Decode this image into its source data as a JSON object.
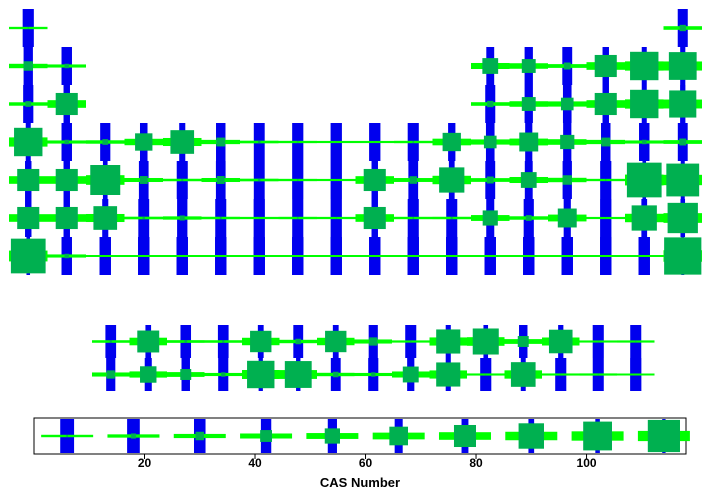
{
  "colors": {
    "blue": "#0000ee",
    "green": "#00ff00",
    "square": "#00b050",
    "frame": "#000000"
  },
  "chart_data": {
    "type": "periodic-table-glyph-chart",
    "title": "",
    "legend": {
      "xlabel": "CAS Number",
      "ticks": [
        20,
        40,
        60,
        80,
        100
      ],
      "xlim": [
        0,
        118
      ],
      "sample_values": [
        6,
        18,
        30,
        42,
        54,
        66,
        78,
        90,
        102,
        114
      ]
    },
    "grid": false,
    "main_table": [
      {
        "period": 1,
        "cells": [
          {
            "g": 1,
            "v": 4
          },
          {
            "g": 18,
            "v": 20
          }
        ]
      },
      {
        "period": 2,
        "cells": [
          {
            "g": 1,
            "v": 30
          },
          {
            "g": 2,
            "v": 14
          },
          {
            "g": 13,
            "v": 50
          },
          {
            "g": 14,
            "v": 44
          },
          {
            "g": 15,
            "v": 22
          },
          {
            "g": 16,
            "v": 70
          },
          {
            "g": 17,
            "v": 90
          },
          {
            "g": 18,
            "v": 88
          }
        ]
      },
      {
        "period": 3,
        "cells": [
          {
            "g": 1,
            "v": 18
          },
          {
            "g": 2,
            "v": 70
          },
          {
            "g": 13,
            "v": 20
          },
          {
            "g": 14,
            "v": 44
          },
          {
            "g": 15,
            "v": 40
          },
          {
            "g": 16,
            "v": 70
          },
          {
            "g": 17,
            "v": 90
          },
          {
            "g": 18,
            "v": 86
          }
        ]
      },
      {
        "period": 4,
        "cells": [
          {
            "g": 1,
            "v": 90
          },
          {
            "g": 2,
            "v": 14
          },
          {
            "g": 3,
            "v": 18
          },
          {
            "g": 4,
            "v": 55
          },
          {
            "g": 5,
            "v": 75
          },
          {
            "g": 6,
            "v": 28
          },
          {
            "g": 7,
            "v": 8
          },
          {
            "g": 8,
            "v": 4
          },
          {
            "g": 9,
            "v": 2
          },
          {
            "g": 10,
            "v": 2
          },
          {
            "g": 11,
            "v": 5
          },
          {
            "g": 12,
            "v": 58
          },
          {
            "g": 13,
            "v": 40
          },
          {
            "g": 14,
            "v": 60
          },
          {
            "g": 15,
            "v": 45
          },
          {
            "g": 16,
            "v": 28
          },
          {
            "g": 17,
            "v": 14
          },
          {
            "g": 18,
            "v": 22
          }
        ]
      },
      {
        "period": 5,
        "cells": [
          {
            "g": 1,
            "v": 70
          },
          {
            "g": 2,
            "v": 70
          },
          {
            "g": 3,
            "v": 95
          },
          {
            "g": 4,
            "v": 25
          },
          {
            "g": 5,
            "v": 6
          },
          {
            "g": 6,
            "v": 25
          },
          {
            "g": 7,
            "v": 8
          },
          {
            "g": 8,
            "v": 4
          },
          {
            "g": 9,
            "v": 2
          },
          {
            "g": 10,
            "v": 70
          },
          {
            "g": 11,
            "v": 24
          },
          {
            "g": 12,
            "v": 80
          },
          {
            "g": 13,
            "v": 22
          },
          {
            "g": 14,
            "v": 50
          },
          {
            "g": 15,
            "v": 30
          },
          {
            "g": 16,
            "v": 4
          },
          {
            "g": 17,
            "v": 110
          },
          {
            "g": 18,
            "v": 104
          }
        ]
      },
      {
        "period": 6,
        "cells": [
          {
            "g": 1,
            "v": 70
          },
          {
            "g": 2,
            "v": 70
          },
          {
            "g": 3,
            "v": 75
          },
          {
            "g": 4,
            "v": 8
          },
          {
            "g": 5,
            "v": 16
          },
          {
            "g": 6,
            "v": 6
          },
          {
            "g": 7,
            "v": 3
          },
          {
            "g": 8,
            "v": 5
          },
          {
            "g": 9,
            "v": 3
          },
          {
            "g": 10,
            "v": 70
          },
          {
            "g": 11,
            "v": 5
          },
          {
            "g": 12,
            "v": 6
          },
          {
            "g": 13,
            "v": 48
          },
          {
            "g": 14,
            "v": 18
          },
          {
            "g": 15,
            "v": 60
          },
          {
            "g": 16,
            "v": 2
          },
          {
            "g": 17,
            "v": 80
          },
          {
            "g": 18,
            "v": 96
          }
        ]
      },
      {
        "period": 7,
        "cells": [
          {
            "g": 1,
            "v": 110
          },
          {
            "g": 2,
            "v": 14
          },
          {
            "g": 3,
            "v": 0
          },
          {
            "g": 4,
            "v": 0
          },
          {
            "g": 5,
            "v": 0
          },
          {
            "g": 6,
            "v": 0
          },
          {
            "g": 7,
            "v": 0
          },
          {
            "g": 8,
            "v": 0
          },
          {
            "g": 9,
            "v": 0
          },
          {
            "g": 10,
            "v": 0
          },
          {
            "g": 11,
            "v": 0
          },
          {
            "g": 12,
            "v": 0
          },
          {
            "g": 13,
            "v": 0
          },
          {
            "g": 14,
            "v": 0
          },
          {
            "g": 15,
            "v": 0
          },
          {
            "g": 16,
            "v": 0
          },
          {
            "g": 17,
            "v": 0
          },
          {
            "g": 18,
            "v": 118
          }
        ]
      }
    ],
    "f_block": [
      {
        "series": "lanthanides",
        "cells": [
          {
            "i": 1,
            "v": 8
          },
          {
            "i": 2,
            "v": 80
          },
          {
            "i": 3,
            "v": 10
          },
          {
            "i": 4,
            "v": 8
          },
          {
            "i": 5,
            "v": 78
          },
          {
            "i": 6,
            "v": 20
          },
          {
            "i": 7,
            "v": 78
          },
          {
            "i": 8,
            "v": 30
          },
          {
            "i": 9,
            "v": 3
          },
          {
            "i": 10,
            "v": 88
          },
          {
            "i": 11,
            "v": 95
          },
          {
            "i": 12,
            "v": 40
          },
          {
            "i": 13,
            "v": 86
          },
          {
            "i": 14,
            "v": 2
          },
          {
            "i": 15,
            "v": 3
          }
        ]
      },
      {
        "series": "actinides",
        "cells": [
          {
            "i": 1,
            "v": 30
          },
          {
            "i": 2,
            "v": 60
          },
          {
            "i": 3,
            "v": 40
          },
          {
            "i": 4,
            "v": 16
          },
          {
            "i": 5,
            "v": 100
          },
          {
            "i": 6,
            "v": 98
          },
          {
            "i": 7,
            "v": 20
          },
          {
            "i": 8,
            "v": 16
          },
          {
            "i": 9,
            "v": 58
          },
          {
            "i": 10,
            "v": 88
          },
          {
            "i": 11,
            "v": 2
          },
          {
            "i": 12,
            "v": 90
          },
          {
            "i": 13,
            "v": 2
          },
          {
            "i": 14,
            "v": 3
          },
          {
            "i": 15,
            "v": 0
          }
        ]
      }
    ]
  }
}
